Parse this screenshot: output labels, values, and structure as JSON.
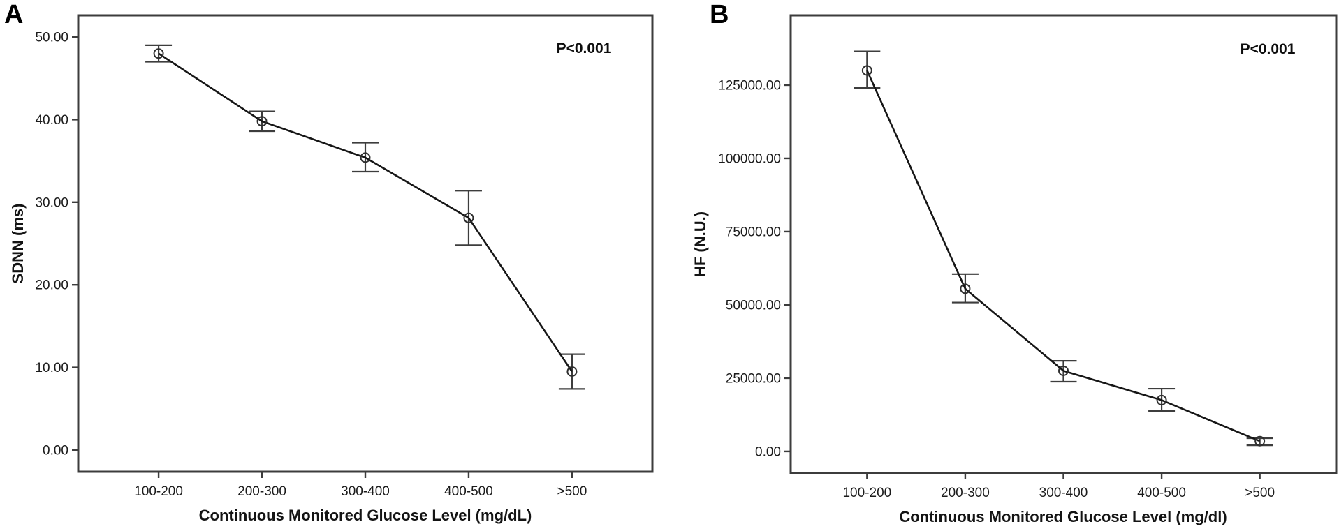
{
  "figure": {
    "background": "#ffffff",
    "axis_color": "#3c3c3c",
    "line_color": "#161616",
    "errorbar_color": "#3d3d3d",
    "marker_stroke": "#2e2e2e",
    "text_color": "#1b1b1b"
  },
  "chart_data": [
    {
      "type": "line",
      "panel_label": "A",
      "annotation": "P<0.001",
      "xlabel": "Continuous Monitored Glucose Level (mg/dL)",
      "ylabel": "SDNN (ms)",
      "categories": [
        "100-200",
        "200-300",
        "300-400",
        "400-500",
        ">500"
      ],
      "series": [
        {
          "name": "SDNN mean",
          "values": [
            48.0,
            39.8,
            35.4,
            28.1,
            9.5
          ]
        }
      ],
      "error_low": [
        47.0,
        38.6,
        33.7,
        24.8,
        7.4
      ],
      "error_high": [
        49.0,
        41.0,
        37.2,
        31.4,
        11.6
      ],
      "ylim": [
        0,
        50
      ],
      "ytick_step": 10,
      "ytick_labels": [
        "0.00",
        "10.00",
        "20.00",
        "30.00",
        "40.00",
        "50.00"
      ],
      "grid": false,
      "legend": "none",
      "marker": "open-circle",
      "error_bars": true
    },
    {
      "type": "line",
      "panel_label": "B",
      "annotation": "P<0.001",
      "xlabel": "Continuous Monitored Glucose Level (mg/dl)",
      "ylabel": "HF (N.U.)",
      "categories": [
        "100-200",
        "200-300",
        "300-400",
        "400-500",
        ">500"
      ],
      "series": [
        {
          "name": "HF mean",
          "values": [
            130000,
            55500,
            27500,
            17500,
            3500
          ]
        }
      ],
      "error_low": [
        124000,
        50800,
        23800,
        13800,
        2100
      ],
      "error_high": [
        136500,
        60500,
        30900,
        21400,
        4500
      ],
      "ylim": [
        0,
        125000
      ],
      "ytick_step": 25000,
      "ytick_labels": [
        "0.00",
        "25000.00",
        "50000.00",
        "75000.00",
        "100000.00",
        "125000.00"
      ],
      "grid": false,
      "legend": "none",
      "marker": "open-circle",
      "error_bars": true
    }
  ]
}
